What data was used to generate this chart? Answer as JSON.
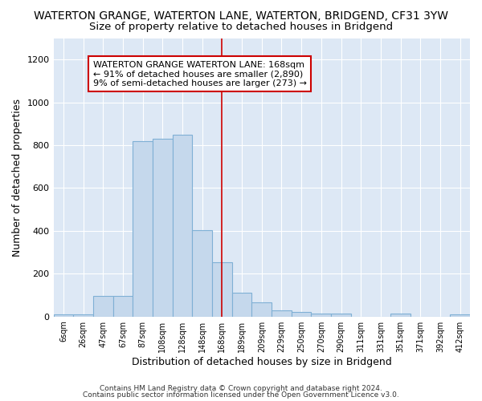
{
  "title": "WATERTON GRANGE, WATERTON LANE, WATERTON, BRIDGEND, CF31 3YW",
  "subtitle": "Size of property relative to detached houses in Bridgend",
  "xlabel": "Distribution of detached houses by size in Bridgend",
  "ylabel": "Number of detached properties",
  "categories": [
    "6sqm",
    "26sqm",
    "47sqm",
    "67sqm",
    "87sqm",
    "108sqm",
    "128sqm",
    "148sqm",
    "168sqm",
    "189sqm",
    "209sqm",
    "229sqm",
    "250sqm",
    "270sqm",
    "290sqm",
    "311sqm",
    "331sqm",
    "351sqm",
    "371sqm",
    "392sqm",
    "412sqm"
  ],
  "values": [
    10,
    10,
    95,
    95,
    820,
    830,
    850,
    405,
    255,
    110,
    65,
    30,
    20,
    13,
    13,
    0,
    0,
    13,
    0,
    0,
    10
  ],
  "bar_color": "#c5d8ec",
  "bar_edgecolor": "#7fb0d5",
  "bar_linewidth": 0.8,
  "vline_x_idx": 8,
  "vline_color": "#cc0000",
  "ylim": [
    0,
    1300
  ],
  "yticks": [
    0,
    200,
    400,
    600,
    800,
    1000,
    1200
  ],
  "annotation_text": "WATERTON GRANGE WATERTON LANE: 168sqm\n← 91% of detached houses are smaller (2,890)\n9% of semi-detached houses are larger (273) →",
  "annotation_box_edgecolor": "#cc0000",
  "annotation_box_facecolor": "#ffffff",
  "annotation_fontsize": 8,
  "title_fontsize": 10,
  "subtitle_fontsize": 9.5,
  "xlabel_fontsize": 9,
  "ylabel_fontsize": 9,
  "footer1": "Contains HM Land Registry data © Crown copyright and database right 2024.",
  "footer2": "Contains public sector information licensed under the Open Government Licence v3.0.",
  "background_color": "#dde8f5",
  "grid_color": "#ffffff",
  "fig_facecolor": "#ffffff"
}
